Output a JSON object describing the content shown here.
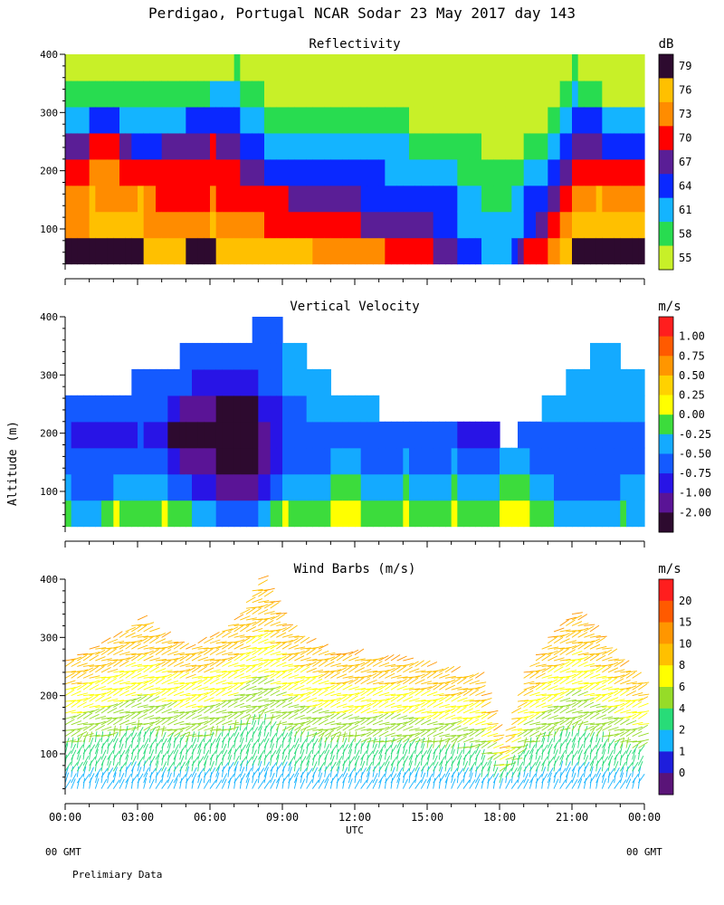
{
  "title": "Perdigao, Portugal  NCAR Sodar  23 May 2017  day 143",
  "ylabel": "Altitude (m)",
  "xlabel": "UTC",
  "x_ticks": [
    "00:00",
    "03:00",
    "06:00",
    "09:00",
    "12:00",
    "15:00",
    "18:00",
    "21:00",
    "00:00"
  ],
  "footer": {
    "left_gmt": "00 GMT",
    "right_gmt": "00 GMT",
    "note": "Prelimiary Data"
  },
  "chart_data": [
    {
      "type": "heatmap",
      "title": "Reflectivity",
      "unit": "dB",
      "ylim": [
        30,
        400
      ],
      "y_ticks": [
        100,
        200,
        300,
        400
      ],
      "xlim": [
        0,
        24
      ],
      "colorbar_labels": [
        "79",
        "76",
        "73",
        "70",
        "67",
        "64",
        "61",
        "58",
        "55"
      ],
      "colorbar_colors": [
        "#2d0a2f",
        "#ffc000",
        "#ff8c00",
        "#ff0000",
        "#5a1e96",
        "#0a28ff",
        "#14b4ff",
        "#28dc50",
        "#c8f028"
      ],
      "profile_hours": [
        0,
        1,
        2,
        3,
        4,
        5,
        6,
        7,
        8,
        9,
        10,
        11,
        12,
        13,
        14,
        15,
        16,
        17,
        18,
        19,
        20,
        21,
        22,
        23,
        24
      ],
      "profiles": [
        [
          79,
          73,
          73,
          70,
          67,
          61,
          58,
          55
        ],
        [
          79,
          76,
          76,
          73,
          70,
          64,
          58,
          55
        ],
        [
          79,
          76,
          73,
          73,
          70,
          64,
          58,
          55
        ],
        [
          79,
          76,
          76,
          70,
          64,
          61,
          58,
          55
        ],
        [
          76,
          73,
          70,
          70,
          67,
          61,
          58,
          55
        ],
        [
          79,
          73,
          70,
          70,
          67,
          64,
          58,
          55
        ],
        [
          79,
          76,
          73,
          70,
          70,
          64,
          61,
          55
        ],
        [
          76,
          73,
          70,
          70,
          67,
          64,
          61,
          58
        ],
        [
          76,
          73,
          70,
          67,
          64,
          61,
          58,
          55
        ],
        [
          76,
          70,
          70,
          64,
          61,
          58,
          55,
          55
        ],
        [
          76,
          70,
          67,
          64,
          61,
          58,
          55,
          55
        ],
        [
          73,
          70,
          67,
          64,
          61,
          58,
          55,
          55
        ],
        [
          73,
          70,
          67,
          64,
          61,
          58,
          55,
          55
        ],
        [
          73,
          67,
          64,
          64,
          61,
          58,
          55,
          55
        ],
        [
          70,
          67,
          64,
          61,
          61,
          58,
          55,
          55
        ],
        [
          70,
          67,
          64,
          61,
          58,
          55,
          55,
          55
        ],
        [
          67,
          64,
          64,
          61,
          58,
          55,
          55,
          55
        ],
        [
          64,
          61,
          61,
          58,
          58,
          55,
          55,
          55
        ],
        [
          61,
          61,
          58,
          58,
          55,
          55,
          55,
          55
        ],
        [
          70,
          64,
          64,
          61,
          58,
          55,
          55,
          55
        ],
        [
          73,
          70,
          67,
          64,
          61,
          58,
          55,
          55
        ],
        [
          79,
          76,
          73,
          70,
          67,
          64,
          61,
          58
        ],
        [
          79,
          76,
          76,
          70,
          67,
          64,
          58,
          55
        ],
        [
          79,
          76,
          73,
          70,
          64,
          61,
          55,
          55
        ],
        [
          79,
          76,
          73,
          70,
          64,
          61,
          58,
          55
        ]
      ]
    },
    {
      "type": "heatmap",
      "title": "Vertical Velocity",
      "unit": "m/s",
      "ylim": [
        30,
        400
      ],
      "y_ticks": [
        100,
        200,
        300,
        400
      ],
      "xlim": [
        0,
        24
      ],
      "colorbar_labels": [
        "1.00",
        "0.75",
        "0.50",
        "0.25",
        "0.00",
        "-0.25",
        "-0.50",
        "-0.75",
        "-1.00",
        "-2.00"
      ],
      "colorbar_colors": [
        "#ff1e1e",
        "#ff5a00",
        "#ff9600",
        "#ffd200",
        "#ffff00",
        "#3cdc3c",
        "#14aaff",
        "#145aff",
        "#2814e6",
        "#5a1496",
        "#2d0a2f"
      ],
      "profile_hours": [
        0,
        1,
        2,
        3,
        4,
        5,
        6,
        7,
        8,
        9,
        10,
        11,
        12,
        13,
        14,
        15,
        16,
        17,
        18,
        19,
        20,
        21,
        22,
        23,
        24
      ],
      "profiles": [
        [
          0.0,
          -0.25,
          -0.5,
          -0.5,
          -0.5,
          null,
          null,
          null
        ],
        [
          -0.25,
          -0.5,
          -0.5,
          -0.75,
          -0.5,
          null,
          null,
          null
        ],
        [
          0.25,
          -0.25,
          -0.5,
          -0.75,
          -0.5,
          null,
          null,
          null
        ],
        [
          0.0,
          -0.25,
          -0.5,
          -0.5,
          -0.5,
          -0.5,
          null,
          null
        ],
        [
          0.25,
          -0.25,
          -0.5,
          -0.75,
          -0.5,
          -0.5,
          null,
          null
        ],
        [
          0.0,
          -0.5,
          -1.0,
          -2.0,
          -1.0,
          -0.5,
          -0.5,
          null
        ],
        [
          -0.25,
          -0.75,
          -1.0,
          -2.0,
          -1.0,
          -0.75,
          -0.5,
          null
        ],
        [
          -0.5,
          -1.0,
          -2.0,
          -2.0,
          -2.0,
          -0.75,
          -0.5,
          null
        ],
        [
          -0.25,
          -0.75,
          -1.0,
          -1.0,
          -0.75,
          -0.5,
          -0.5,
          -0.5
        ],
        [
          0.25,
          -0.25,
          -0.5,
          -0.5,
          -0.5,
          -0.25,
          -0.25,
          null
        ],
        [
          0.0,
          -0.25,
          -0.5,
          -0.5,
          -0.25,
          -0.25,
          null,
          null
        ],
        [
          0.25,
          0.0,
          -0.25,
          -0.5,
          -0.25,
          null,
          null,
          null
        ],
        [
          0.25,
          0.0,
          -0.25,
          -0.5,
          -0.25,
          null,
          null,
          null
        ],
        [
          0.0,
          -0.25,
          -0.5,
          -0.5,
          null,
          null,
          null,
          null
        ],
        [
          0.25,
          0.0,
          -0.25,
          -0.5,
          null,
          null,
          null,
          null
        ],
        [
          0.0,
          -0.25,
          -0.5,
          -0.5,
          null,
          null,
          null,
          null
        ],
        [
          0.25,
          0.0,
          -0.25,
          -0.5,
          null,
          null,
          null,
          null
        ],
        [
          0.0,
          -0.25,
          -0.5,
          -0.75,
          null,
          null,
          null,
          null
        ],
        [
          0.25,
          0.0,
          -0.25,
          null,
          null,
          null,
          null,
          null
        ],
        [
          0.25,
          0.0,
          -0.25,
          -0.5,
          null,
          null,
          null,
          null
        ],
        [
          0.0,
          -0.25,
          -0.5,
          -0.5,
          -0.25,
          null,
          null,
          null
        ],
        [
          -0.25,
          -0.5,
          -0.5,
          -0.5,
          -0.25,
          -0.25,
          null,
          null
        ],
        [
          -0.25,
          -0.5,
          -0.5,
          -0.5,
          -0.25,
          -0.25,
          -0.25,
          null
        ],
        [
          0.0,
          -0.25,
          -0.5,
          -0.5,
          -0.25,
          -0.25,
          null,
          null
        ],
        [
          -0.25,
          -0.25,
          -0.5,
          -0.25,
          -0.25,
          null,
          null,
          null
        ]
      ]
    },
    {
      "type": "scatter",
      "title": "Wind Barbs (m/s)",
      "unit": "m/s",
      "ylim": [
        30,
        400
      ],
      "y_ticks": [
        100,
        200,
        300,
        400
      ],
      "xlim": [
        0,
        24
      ],
      "colorbar_labels": [
        "20",
        "15",
        "10",
        "8",
        "6",
        "4",
        "2",
        "1",
        "0"
      ],
      "colorbar_colors": [
        "#ff1e1e",
        "#ff5a00",
        "#ff9600",
        "#ffc000",
        "#ffff00",
        "#96dc28",
        "#28dc78",
        "#14b4ff",
        "#1e1edc",
        "#5a1478"
      ],
      "top_profile": [
        260,
        280,
        300,
        330,
        300,
        280,
        300,
        330,
        400,
        320,
        290,
        270,
        270,
        260,
        260,
        250,
        240,
        230,
        110,
        240,
        300,
        340,
        300,
        250,
        220
      ],
      "speed_bins": [
        0,
        1,
        2,
        4,
        6,
        8,
        10,
        15,
        20
      ]
    }
  ]
}
